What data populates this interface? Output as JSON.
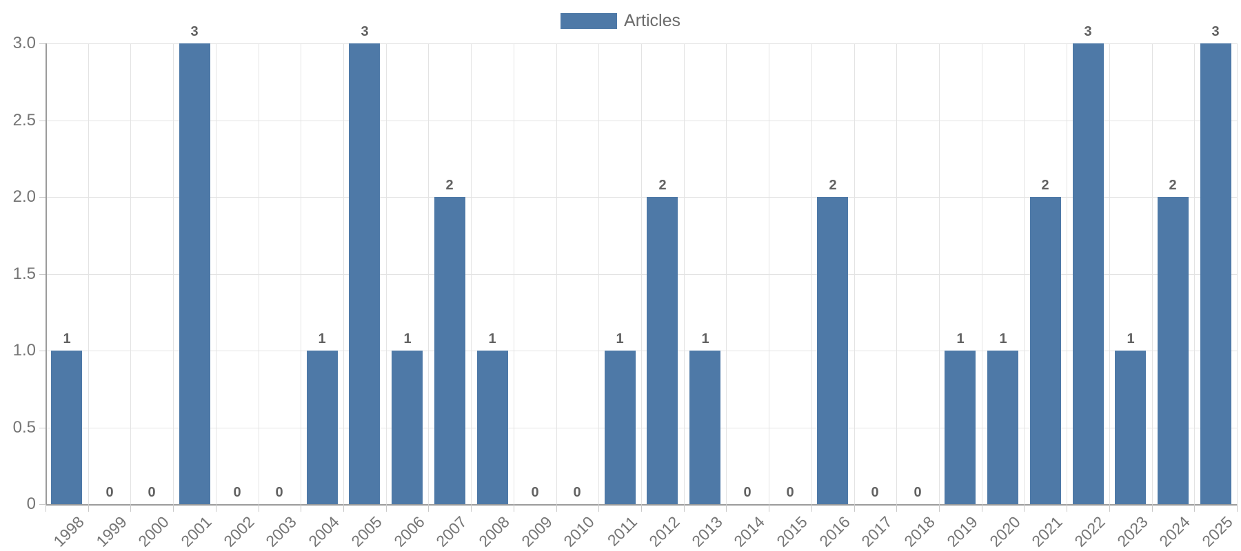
{
  "chart_data": {
    "type": "bar",
    "title": "",
    "xlabel": "",
    "ylabel": "",
    "categories": [
      "1998",
      "1999",
      "2000",
      "2001",
      "2002",
      "2003",
      "2004",
      "2005",
      "2006",
      "2007",
      "2008",
      "2009",
      "2010",
      "2011",
      "2012",
      "2013",
      "2014",
      "2015",
      "2016",
      "2017",
      "2018",
      "2019",
      "2020",
      "2021",
      "2022",
      "2023",
      "2024",
      "2025"
    ],
    "series": [
      {
        "name": "Articles",
        "values": [
          1,
          0,
          0,
          3,
          0,
          0,
          1,
          3,
          1,
          2,
          1,
          0,
          0,
          1,
          2,
          1,
          0,
          0,
          2,
          0,
          0,
          1,
          1,
          2,
          3,
          1,
          2,
          3
        ]
      }
    ],
    "ylim": [
      0,
      3
    ],
    "ytick_values": [
      0,
      0.5,
      1,
      1.5,
      2,
      2.5,
      3
    ],
    "ytick_labels": [
      "0",
      "0.5",
      "1.0",
      "1.5",
      "2.0",
      "2.5",
      "3.0"
    ],
    "grid": true,
    "grid_offset_between_categories": true,
    "legend_position": "top-center",
    "data_labels_shown": true,
    "colors": {
      "bar": "#4e79a7",
      "grid": "#e3e3e3",
      "axis": "#9b9b9b",
      "tick_mark": "#c9c9c9",
      "tick_text": "#757575",
      "data_label": "#616161",
      "legend_text": "#6b6b6b"
    }
  }
}
